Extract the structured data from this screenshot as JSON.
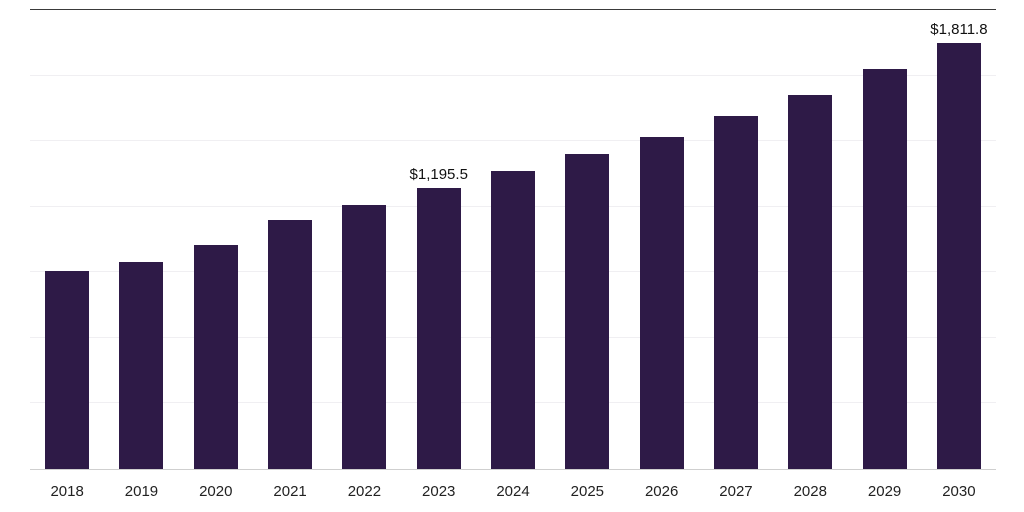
{
  "chart_data": {
    "type": "bar",
    "title": "",
    "xlabel": "",
    "ylabel": "",
    "categories": [
      "2018",
      "2019",
      "2020",
      "2021",
      "2022",
      "2023",
      "2024",
      "2025",
      "2026",
      "2027",
      "2028",
      "2029",
      "2030"
    ],
    "values": [
      840,
      878,
      950,
      1060,
      1120,
      1195.5,
      1265,
      1340,
      1410,
      1500,
      1590,
      1700,
      1811.8
    ],
    "data_labels": {
      "2023": "$1,195.5",
      "2030": "$1,811.8"
    },
    "bar_color": "#2E1A47",
    "ylim": [
      0,
      1950
    ],
    "grid": true,
    "gridline_count": 7,
    "legend": "none",
    "y_axis_labels_visible": false
  }
}
